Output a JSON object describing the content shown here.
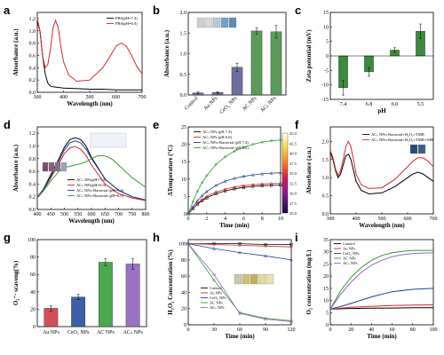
{
  "panel_labels": [
    "a",
    "b",
    "c",
    "d",
    "e",
    "f",
    "g",
    "h",
    "i"
  ],
  "chart_data": [
    {
      "panel": "a",
      "type": "line",
      "xlabel": "Wavelength (nm)",
      "ylabel": "Absorbance (a.u.)",
      "xlim": [
        300,
        700
      ],
      "ylim": [
        0,
        1.3
      ],
      "xticks": [
        300,
        400,
        500,
        600,
        700
      ],
      "yticks": [
        0,
        0.2,
        0.4,
        0.6,
        0.8,
        1.0,
        1.2
      ],
      "ytick_labels": [
        "0.0",
        "0.2",
        "0.4",
        "0.6",
        "0.8",
        "1.0",
        "1.2"
      ],
      "legend_position": "top-right",
      "series": [
        {
          "name": "PBS(pH=7.4)",
          "color": "#000000",
          "x": [
            300,
            310,
            320,
            330,
            340,
            350,
            360,
            380,
            400,
            450,
            500,
            550,
            600,
            650,
            700
          ],
          "y": [
            1.15,
            1.0,
            0.6,
            0.3,
            0.15,
            0.1,
            0.09,
            0.08,
            0.07,
            0.06,
            0.05,
            0.05,
            0.04,
            0.04,
            0.04
          ]
        },
        {
          "name": "PBS(pH=6.0)",
          "color": "#d62728",
          "x": [
            300,
            310,
            320,
            330,
            340,
            350,
            360,
            370,
            380,
            390,
            400,
            420,
            450,
            500,
            550,
            580,
            600,
            620,
            640,
            660,
            680,
            700
          ],
          "y": [
            1.2,
            1.0,
            0.6,
            0.4,
            0.45,
            0.7,
            1.05,
            1.17,
            1.05,
            0.75,
            0.5,
            0.28,
            0.18,
            0.2,
            0.4,
            0.6,
            0.75,
            0.8,
            0.75,
            0.6,
            0.42,
            0.3
          ]
        }
      ]
    },
    {
      "panel": "b",
      "type": "bar",
      "ylabel": "Absorbance (a.u.)",
      "categories": [
        "Control",
        "Au NPs",
        "CeO₂ NPs",
        "AC NPs",
        "ACₛ NPs"
      ],
      "values": [
        0.05,
        0.06,
        0.67,
        1.55,
        1.53
      ],
      "errors": [
        0.02,
        0.02,
        0.1,
        0.08,
        0.15
      ],
      "ylim": [
        0,
        2.0
      ],
      "yticks": [
        0,
        0.5,
        1.0,
        1.5,
        2.0
      ],
      "ytick_labels": [
        "0.0",
        "0.5",
        "1.0",
        "1.5",
        "2.0"
      ],
      "colors": [
        "#6f6f9f",
        "#6f6f9f",
        "#6f6f9f",
        "#5a9a5a",
        "#5a9a5a"
      ]
    },
    {
      "panel": "c",
      "type": "bar",
      "xlabel": "pH",
      "ylabel": "Zeta potential (mV)",
      "categories": [
        "7.4",
        "6.8",
        "6.0",
        "5.5"
      ],
      "values": [
        -11,
        -5.5,
        2,
        8.5
      ],
      "errors": [
        2.5,
        1.5,
        0.8,
        2.5
      ],
      "ylim": [
        -15,
        15
      ],
      "yticks": [
        -15,
        -10,
        -5,
        0,
        5,
        10,
        15
      ],
      "color": "#3d8b3d"
    },
    {
      "panel": "d",
      "type": "line",
      "xlabel": "Wavelength (nm)",
      "ylabel": "Absorbance (a.u.)",
      "xlim": [
        400,
        800
      ],
      "ylim": [
        0,
        1.3
      ],
      "xticks": [
        400,
        450,
        500,
        550,
        600,
        650,
        700,
        750,
        800
      ],
      "yticks": [
        0,
        0.2,
        0.4,
        0.6,
        0.8,
        1.0,
        1.2
      ],
      "ytick_labels": [
        "0.0",
        "0.2",
        "0.4",
        "0.6",
        "0.8",
        "1.0",
        "1.2"
      ],
      "legend_position": "center-right",
      "series": [
        {
          "name": "ACₛ NPs(pH=7.4)",
          "color": "#000000",
          "x": [
            400,
            420,
            450,
            480,
            500,
            520,
            540,
            560,
            580,
            600,
            650,
            700,
            750,
            800
          ],
          "y": [
            0.2,
            0.3,
            0.55,
            0.8,
            0.98,
            1.1,
            1.13,
            1.1,
            1.0,
            0.82,
            0.48,
            0.3,
            0.2,
            0.15
          ]
        },
        {
          "name": "ACₛ NPs(pH=6.0)",
          "color": "#d62728",
          "x": [
            400,
            420,
            450,
            480,
            500,
            520,
            540,
            560,
            580,
            600,
            650,
            700,
            750,
            800
          ],
          "y": [
            0.18,
            0.28,
            0.5,
            0.72,
            0.88,
            0.97,
            0.99,
            0.95,
            0.85,
            0.7,
            0.4,
            0.25,
            0.18,
            0.14
          ]
        },
        {
          "name": "ACₛ NPs+Bacterial (pH=7.4)",
          "color": "#1f3f9f",
          "x": [
            400,
            420,
            450,
            480,
            500,
            520,
            540,
            560,
            580,
            600,
            650,
            700,
            750,
            800
          ],
          "y": [
            0.2,
            0.3,
            0.52,
            0.76,
            0.94,
            1.05,
            1.08,
            1.05,
            0.95,
            0.8,
            0.48,
            0.3,
            0.2,
            0.15
          ]
        },
        {
          "name": "ACₛ NPs+Bacterial (pH=6.0)",
          "color": "#2ca02c",
          "x": [
            400,
            420,
            450,
            480,
            500,
            520,
            540,
            560,
            580,
            600,
            620,
            640,
            660,
            680,
            700,
            750,
            800
          ],
          "y": [
            0.2,
            0.28,
            0.45,
            0.6,
            0.66,
            0.68,
            0.7,
            0.72,
            0.75,
            0.8,
            0.84,
            0.85,
            0.83,
            0.78,
            0.7,
            0.5,
            0.35
          ]
        }
      ]
    },
    {
      "panel": "e",
      "type": "line",
      "xlabel": "Time (min)",
      "ylabel": "ΔTemperature (°C)",
      "xlim": [
        0,
        10
      ],
      "ylim": [
        0,
        25
      ],
      "xticks": [
        0,
        2,
        4,
        6,
        8,
        10
      ],
      "yticks": [
        0,
        5,
        10,
        15,
        20,
        25
      ],
      "legend_position": "top-left",
      "colorbar_ticks": [
        "45.0",
        "42.5",
        "40.0",
        "37.5",
        "35.0",
        "32.5",
        "30.0",
        "27.5",
        "25.0"
      ],
      "series": [
        {
          "name": "ACₛ NPs (pH 7.4)",
          "color": "#000000",
          "x": [
            0,
            0.5,
            1,
            1.5,
            2,
            3,
            4,
            5,
            6,
            7,
            8,
            9,
            10
          ],
          "y": [
            0,
            1.5,
            2.8,
            3.8,
            4.6,
            5.8,
            6.6,
            7.2,
            7.6,
            7.9,
            8.1,
            8.2,
            8.3
          ]
        },
        {
          "name": "ACₛ NPs (pH 6.0)",
          "color": "#d62728",
          "x": [
            0,
            0.5,
            1,
            1.5,
            2,
            3,
            4,
            5,
            6,
            7,
            8,
            9,
            10
          ],
          "y": [
            0,
            1.6,
            3.0,
            4.1,
            5.0,
            6.3,
            7.1,
            7.7,
            8.1,
            8.4,
            8.6,
            8.7,
            8.8
          ]
        },
        {
          "name": "ACₛ NPs+Bacterial (pH 7.4)",
          "color": "#1f3f9f",
          "x": [
            0,
            0.5,
            1,
            1.5,
            2,
            3,
            4,
            5,
            6,
            7,
            8,
            9,
            10
          ],
          "y": [
            0,
            2.0,
            3.8,
            5.2,
            6.4,
            8.2,
            9.4,
            10.2,
            10.8,
            11.2,
            11.5,
            11.7,
            11.8
          ]
        },
        {
          "name": "ACₛ NPs+Bacterial (pH 6.0)",
          "color": "#2ca02c",
          "x": [
            0,
            0.5,
            1,
            1.5,
            2,
            3,
            4,
            5,
            6,
            7,
            8,
            9,
            10
          ],
          "y": [
            0,
            3.5,
            6.5,
            9.0,
            11.0,
            14.2,
            16.4,
            18.0,
            19.2,
            20.0,
            20.6,
            21.0,
            21.2
          ]
        }
      ]
    },
    {
      "panel": "f",
      "type": "line",
      "xlabel": "Wavelength (nm)",
      "ylabel": "Absorbance (a.u.)",
      "xlim": [
        300,
        700
      ],
      "ylim": [
        0,
        2.4
      ],
      "xticks": [
        300,
        400,
        500,
        600,
        700
      ],
      "yticks": [
        0,
        0.5,
        1.0,
        1.5,
        2.0
      ],
      "ytick_labels": [
        "0.0",
        "0.5",
        "1.0",
        "1.5",
        "2.0"
      ],
      "legend_position": "top-right",
      "series": [
        {
          "name": "ACₛ NPs+Bacterial+H₂O₂+TMB",
          "color": "#000000",
          "x": [
            300,
            310,
            320,
            330,
            340,
            350,
            360,
            370,
            380,
            390,
            400,
            420,
            450,
            500,
            550,
            600,
            620,
            640,
            660,
            680,
            700
          ],
          "y": [
            1.7,
            1.5,
            1.2,
            1.0,
            1.1,
            1.35,
            1.6,
            1.65,
            1.5,
            1.2,
            0.9,
            0.65,
            0.55,
            0.58,
            0.75,
            1.0,
            1.1,
            1.15,
            1.1,
            1.0,
            0.9
          ]
        },
        {
          "name": "ACₛ NPs+Bacterial+H₂O₂+TMB+NIR",
          "color": "#d62728",
          "x": [
            300,
            310,
            320,
            330,
            340,
            350,
            360,
            370,
            380,
            390,
            400,
            420,
            450,
            500,
            550,
            600,
            620,
            640,
            660,
            680,
            700
          ],
          "y": [
            1.75,
            1.55,
            1.25,
            1.05,
            1.2,
            1.5,
            1.85,
            2.0,
            1.85,
            1.5,
            1.1,
            0.8,
            0.7,
            0.72,
            0.95,
            1.3,
            1.45,
            1.55,
            1.55,
            1.45,
            1.3
          ]
        }
      ]
    },
    {
      "panel": "g",
      "type": "bar",
      "ylabel": "O₂⁻· scaveng(%)",
      "categories": [
        "Au NPs",
        "CeO₂ NPs",
        "AC NPs",
        "ACₛ NPs"
      ],
      "values": [
        21,
        34,
        74,
        72
      ],
      "errors": [
        3,
        3,
        4,
        6
      ],
      "ylim": [
        0,
        100
      ],
      "yticks": [
        0,
        20,
        40,
        60,
        80,
        100
      ],
      "colors": [
        "#d24f5a",
        "#3e5ea8",
        "#4aa84f",
        "#9a72c2"
      ]
    },
    {
      "panel": "h",
      "type": "line",
      "xlabel": "Time (min)",
      "ylabel": "H₂O₂ Concentration (%)",
      "xlim": [
        0,
        120
      ],
      "ylim": [
        0,
        105
      ],
      "xticks": [
        0,
        30,
        60,
        90,
        120
      ],
      "yticks": [
        0,
        20,
        40,
        60,
        80,
        100
      ],
      "legend_position": "bottom-left",
      "series": [
        {
          "name": "Control",
          "color": "#000000",
          "x": [
            0,
            30,
            60,
            90,
            120
          ],
          "y": [
            100,
            100,
            100,
            99,
            99
          ]
        },
        {
          "name": "Au NPs",
          "color": "#d62728",
          "x": [
            0,
            30,
            60,
            90,
            120
          ],
          "y": [
            100,
            99,
            98,
            97,
            96
          ]
        },
        {
          "name": "CeO₂ NPs",
          "color": "#1f3f9f",
          "x": [
            0,
            30,
            60,
            90,
            120
          ],
          "y": [
            100,
            94,
            89,
            85,
            80
          ]
        },
        {
          "name": "AC NPs",
          "color": "#2ca02c",
          "x": [
            0,
            30,
            60,
            90,
            120
          ],
          "y": [
            100,
            55,
            15,
            8,
            5
          ]
        },
        {
          "name": "ACₛ NPs",
          "color": "#9467bd",
          "x": [
            0,
            30,
            60,
            90,
            120
          ],
          "y": [
            100,
            62,
            14,
            7,
            4
          ]
        }
      ]
    },
    {
      "panel": "i",
      "type": "line",
      "xlabel": "Time (min)",
      "ylabel": "O₂ concentration (mg/L)",
      "xlim": [
        0,
        100
      ],
      "ylim": [
        0,
        35
      ],
      "xticks": [
        0,
        20,
        40,
        60,
        80,
        100
      ],
      "yticks": [
        0,
        5,
        10,
        15,
        20,
        25,
        30,
        35
      ],
      "legend_position": "top-left",
      "series": [
        {
          "name": "Control",
          "color": "#000000",
          "x": [
            0,
            10,
            20,
            40,
            60,
            80,
            100
          ],
          "y": [
            6.5,
            6.6,
            6.7,
            6.8,
            6.9,
            7.0,
            7.0
          ]
        },
        {
          "name": "Au NPs",
          "color": "#d62728",
          "x": [
            0,
            10,
            20,
            40,
            60,
            80,
            100
          ],
          "y": [
            6.5,
            6.8,
            7.2,
            7.6,
            7.9,
            8.1,
            8.2
          ]
        },
        {
          "name": "CeO₂ NPs",
          "color": "#1f3f9f",
          "x": [
            0,
            10,
            20,
            40,
            60,
            80,
            100
          ],
          "y": [
            6.5,
            7.5,
            8.8,
            11.5,
            13.6,
            14.6,
            15.0
          ]
        },
        {
          "name": "AC NPs",
          "color": "#2ca02c",
          "x": [
            0,
            10,
            20,
            30,
            40,
            50,
            60,
            70,
            80,
            100
          ],
          "y": [
            6.5,
            14,
            19.5,
            23.5,
            26.5,
            28.5,
            29.6,
            30.2,
            30.5,
            30.6
          ]
        },
        {
          "name": "ACₛ NPs",
          "color": "#9467bd",
          "x": [
            0,
            10,
            20,
            30,
            40,
            50,
            60,
            70,
            80,
            100
          ],
          "y": [
            6.5,
            12.5,
            17.5,
            21.5,
            24.5,
            26.5,
            28,
            28.8,
            29.3,
            29.6
          ]
        }
      ]
    }
  ]
}
